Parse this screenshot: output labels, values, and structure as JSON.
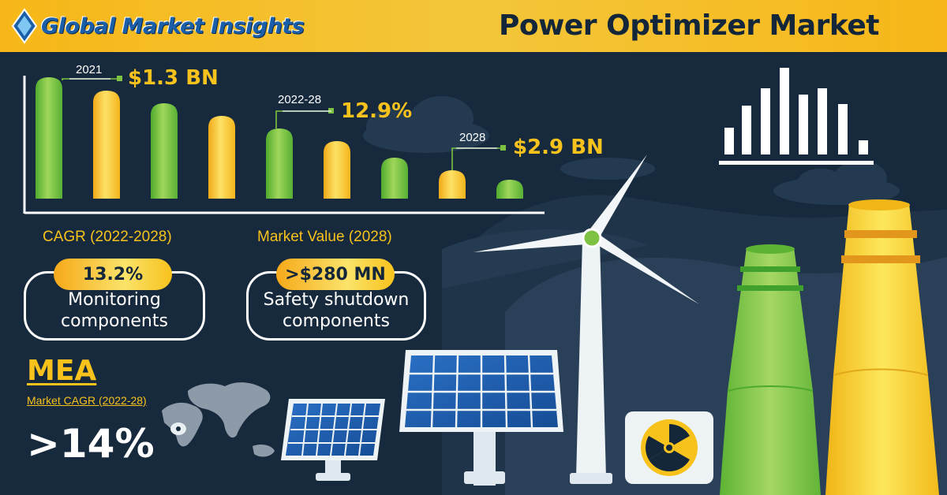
{
  "header": {
    "logo_text": "Global Market Insights",
    "title": "Power Optimizer Market"
  },
  "callouts": [
    {
      "year": "2021",
      "value": "$1.3 BN"
    },
    {
      "year": "2022-28",
      "value": "12.9%"
    },
    {
      "year": "2028",
      "value": "$2.9 BN"
    }
  ],
  "stats": {
    "cagr_heading": "CAGR (2022-2028)",
    "cagr_value": "13.2%",
    "cagr_segment_line1": "Monitoring",
    "cagr_segment_line2": "components",
    "market_heading": "Market Value (2028)",
    "market_value": ">$280 MN",
    "market_segment_line1": "Safety shutdown",
    "market_segment_line2": "components"
  },
  "region": {
    "name": "MEA",
    "caption": "Market CAGR (2022-28)",
    "value": ">14%"
  },
  "colors": {
    "header_yellow": "#f7b718",
    "background_navy": "#172a3d",
    "accent_yellow": "#f7c21c",
    "accent_green": "#7dc242"
  },
  "icons": [
    "logo-diamond-icon",
    "bar-chart-icon",
    "wind-turbine-icon",
    "solar-panel-icon",
    "radiation-icon",
    "cooling-tower-icon",
    "world-map-icon"
  ]
}
